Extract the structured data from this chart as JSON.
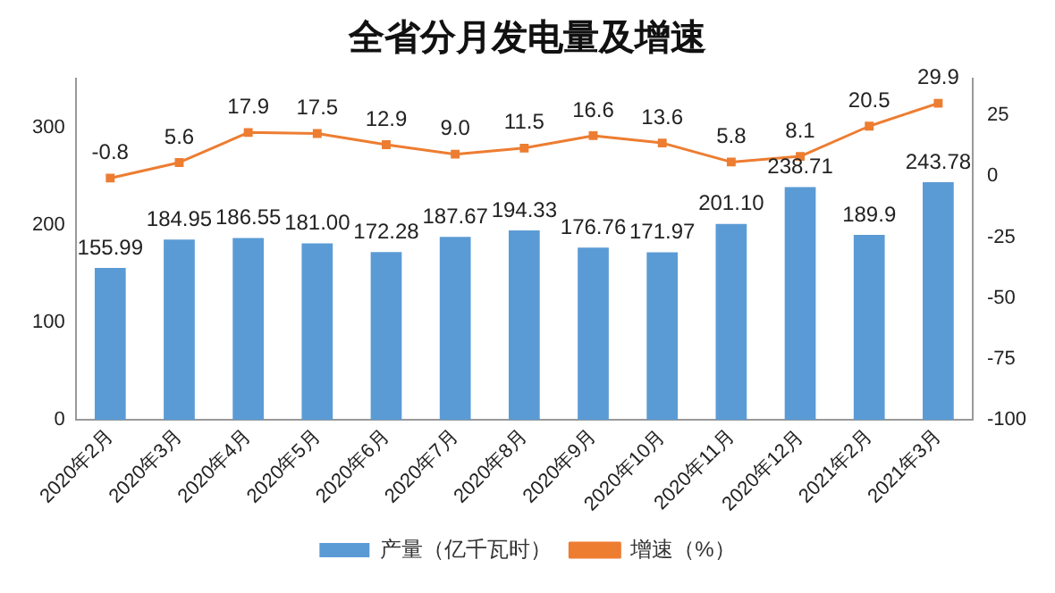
{
  "chart_data": {
    "type": "bar",
    "title": "全省分月发电量及增速",
    "categories": [
      "2020年2月",
      "2020年3月",
      "2020年4月",
      "2020年5月",
      "2020年6月",
      "2020年7月",
      "2020年8月",
      "2020年9月",
      "2020年10月",
      "2020年11月",
      "2020年12月",
      "2021年2月",
      "2021年3月"
    ],
    "series": [
      {
        "name": "产量（亿千瓦时）",
        "color": "#5b9bd5",
        "values": [
          155.99,
          184.95,
          186.55,
          181.0,
          172.28,
          187.67,
          194.33,
          176.76,
          171.97,
          201.1,
          238.71,
          189.9,
          243.78
        ],
        "value_labels": [
          "155.99",
          "184.95",
          "186.55",
          "181.00",
          "172.28",
          "187.67",
          "194.33",
          "176.76",
          "171.97",
          "201.10",
          "238.71",
          "189.9",
          "243.78"
        ]
      },
      {
        "name": "增速（%）",
        "type": "line",
        "axis": "y2",
        "color": "#ed7d31",
        "marker": "square",
        "values": [
          -0.8,
          5.6,
          17.9,
          17.5,
          12.9,
          9.0,
          11.5,
          16.6,
          13.6,
          5.8,
          8.1,
          20.5,
          29.9
        ],
        "value_labels": [
          "-0.8",
          "5.6",
          "17.9",
          "17.5",
          "12.9",
          "9.0",
          "11.5",
          "16.6",
          "13.6",
          "5.8",
          "8.1",
          "20.5",
          "29.9"
        ]
      }
    ],
    "ylim": [
      0,
      350
    ],
    "yticks": [
      0,
      100,
      200,
      300
    ],
    "y2lim": [
      -100,
      40
    ],
    "y2ticks": [
      -100,
      -75,
      -50,
      -25,
      0,
      25
    ],
    "grid": false,
    "legend": "bottom"
  }
}
